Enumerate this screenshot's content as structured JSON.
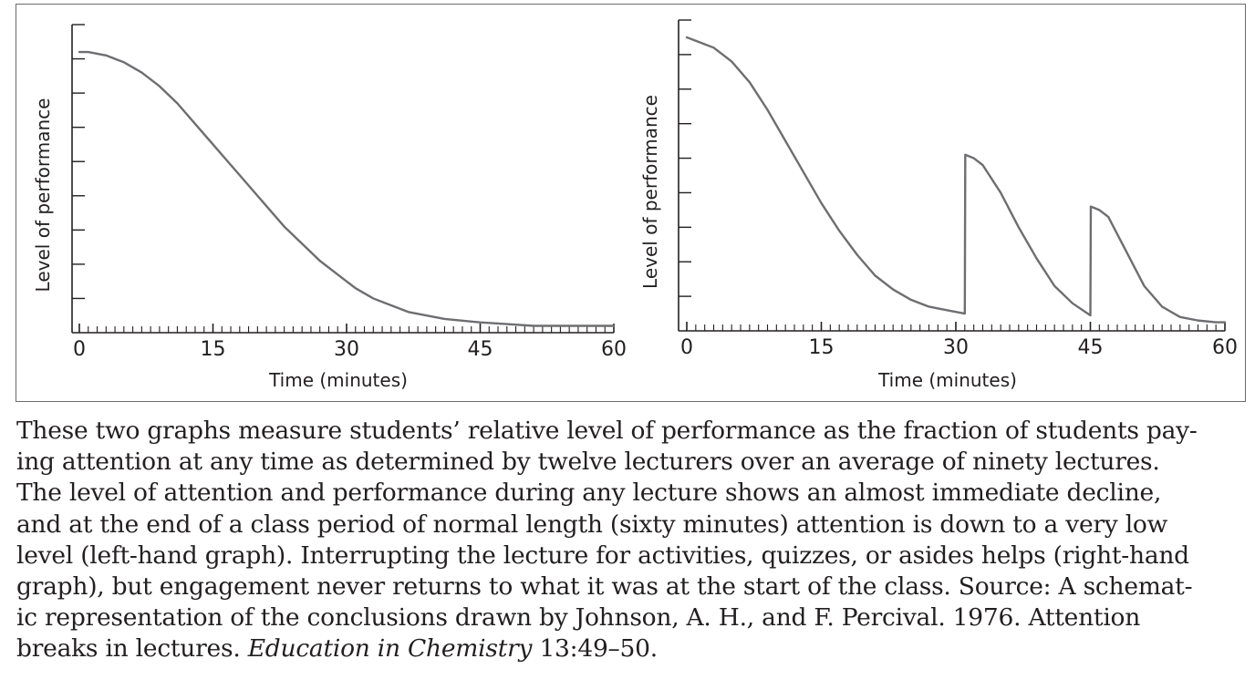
{
  "chart_data": [
    {
      "type": "line",
      "xlabel": "Time (minutes)",
      "ylabel": "Level of performance",
      "xlim": [
        0,
        60
      ],
      "ylim": [
        0,
        9
      ],
      "x_ticks": [
        0,
        15,
        30,
        45,
        60
      ],
      "x_minor_step": 1,
      "y_minor_step": 1,
      "grid": false,
      "series": [
        {
          "x": [
            0,
            1,
            3,
            5,
            7,
            9,
            11,
            13,
            15,
            17,
            19,
            21,
            23,
            25,
            27,
            29,
            31,
            33,
            35,
            37,
            39,
            41,
            43,
            45,
            48,
            51,
            54,
            57,
            60
          ],
          "values": [
            8.2,
            8.2,
            8.1,
            7.9,
            7.6,
            7.2,
            6.7,
            6.1,
            5.5,
            4.9,
            4.3,
            3.7,
            3.1,
            2.6,
            2.1,
            1.7,
            1.3,
            1.0,
            0.8,
            0.6,
            0.5,
            0.4,
            0.35,
            0.3,
            0.25,
            0.2,
            0.2,
            0.2,
            0.2
          ]
        }
      ]
    },
    {
      "type": "line",
      "xlabel": "Time (minutes)",
      "ylabel": "Level of performance",
      "xlim": [
        0,
        60
      ],
      "ylim": [
        0,
        9
      ],
      "x_ticks": [
        0,
        15,
        30,
        45,
        60
      ],
      "x_minor_step": 1,
      "y_minor_step": 1,
      "grid": false,
      "series": [
        {
          "x": [
            0,
            1,
            3,
            5,
            7,
            9,
            11,
            13,
            15,
            17,
            19,
            21,
            23,
            25,
            27,
            29,
            31,
            31.05,
            32,
            33,
            35,
            37,
            39,
            41,
            43,
            45,
            45.05,
            46,
            47,
            49,
            51,
            53,
            55,
            57,
            59,
            60
          ],
          "values": [
            8.5,
            8.4,
            8.2,
            7.8,
            7.2,
            6.4,
            5.5,
            4.6,
            3.7,
            2.9,
            2.2,
            1.6,
            1.2,
            0.9,
            0.7,
            0.6,
            0.5,
            5.1,
            5.0,
            4.8,
            4.0,
            3.0,
            2.1,
            1.3,
            0.8,
            0.45,
            3.6,
            3.5,
            3.3,
            2.3,
            1.3,
            0.7,
            0.4,
            0.3,
            0.25,
            0.25
          ]
        }
      ]
    }
  ],
  "caption": {
    "lines": [
      "These two graphs measure students’ relative level of performance as the fraction of students pay-",
      "ing attention at any time as determined by twelve lecturers over an average of ninety lectures.",
      "The level of attention and performance during any lecture shows an almost immediate decline,",
      "and at the end of a class period of normal length (sixty minutes) attention is down to a very low",
      "level (left-hand graph). Interrupting the lecture for activities, quizzes, or asides helps (right-hand",
      "graph), but engagement never returns to what it was at the start of the class. Source: A schemat-",
      "ic representation of the conclusions drawn by Johnson, A. H., and F. Percival. 1976. Attention"
    ],
    "last_line_prefix": "breaks in lectures. ",
    "journal": "Education in Chemistry",
    "last_line_suffix": " 13:49–50."
  }
}
